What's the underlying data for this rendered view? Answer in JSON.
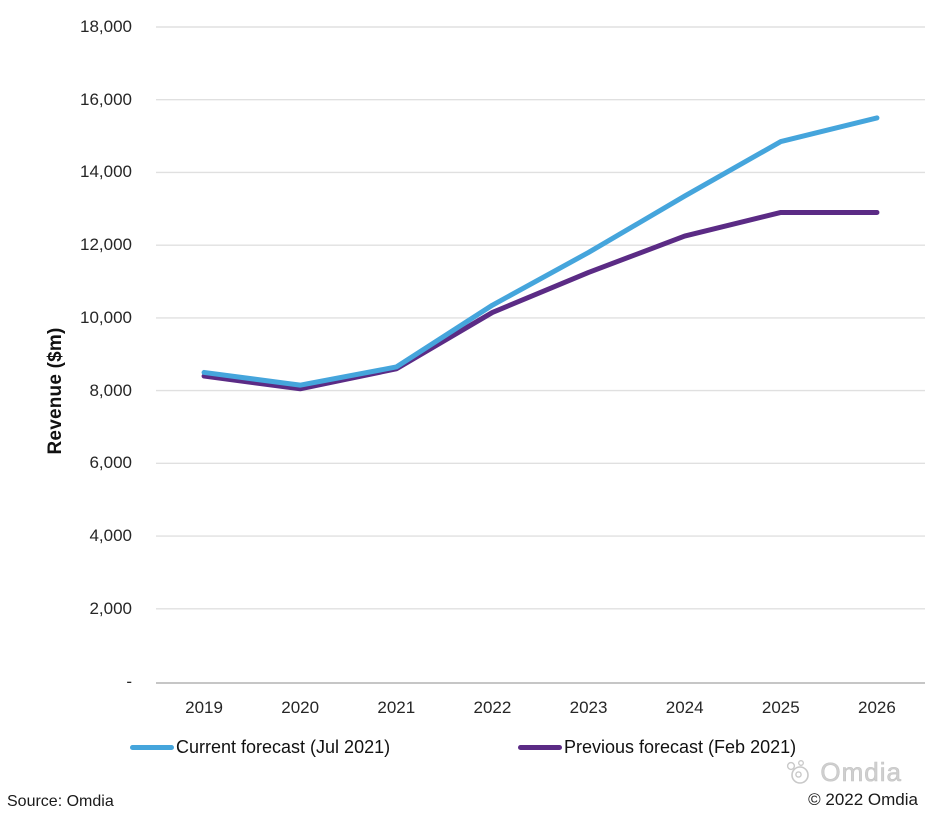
{
  "chart_data": {
    "type": "line",
    "title": "",
    "xlabel": "",
    "ylabel": "Revenue ($m)",
    "ylim": [
      0,
      18000
    ],
    "y_tick_interval": 2000,
    "grid": "horizontal",
    "legend_position": "bottom",
    "categories": [
      "2019",
      "2020",
      "2021",
      "2022",
      "2023",
      "2024",
      "2025",
      "2026"
    ],
    "series": [
      {
        "name": "Current forecast (Jul 2021)",
        "color": "#45A5DC",
        "values": [
          8500,
          8150,
          8650,
          10350,
          11800,
          13350,
          14850,
          15500
        ]
      },
      {
        "name": "Previous forecast (Feb 2021)",
        "color": "#5B2B85",
        "values": [
          8400,
          8050,
          8600,
          10150,
          11250,
          12250,
          12900,
          12900
        ]
      }
    ]
  },
  "yaxis": {
    "ticks": [
      {
        "label": "18,000",
        "value": 18000
      },
      {
        "label": "16,000",
        "value": 16000
      },
      {
        "label": "14,000",
        "value": 14000
      },
      {
        "label": "12,000",
        "value": 12000
      },
      {
        "label": "10,000",
        "value": 10000
      },
      {
        "label": "8,000",
        "value": 8000
      },
      {
        "label": "6,000",
        "value": 6000
      },
      {
        "label": "4,000",
        "value": 4000
      },
      {
        "label": "2,000",
        "value": 2000
      },
      {
        "label": "-",
        "value": 0
      }
    ]
  },
  "footer": {
    "source": "Source: Omdia",
    "logo_text": "Omdia",
    "copyright": "© 2022 Omdia"
  },
  "colors": {
    "gridline": "#E0E0E0",
    "axis": "#C6C6C6",
    "tick_text": "#262626"
  }
}
